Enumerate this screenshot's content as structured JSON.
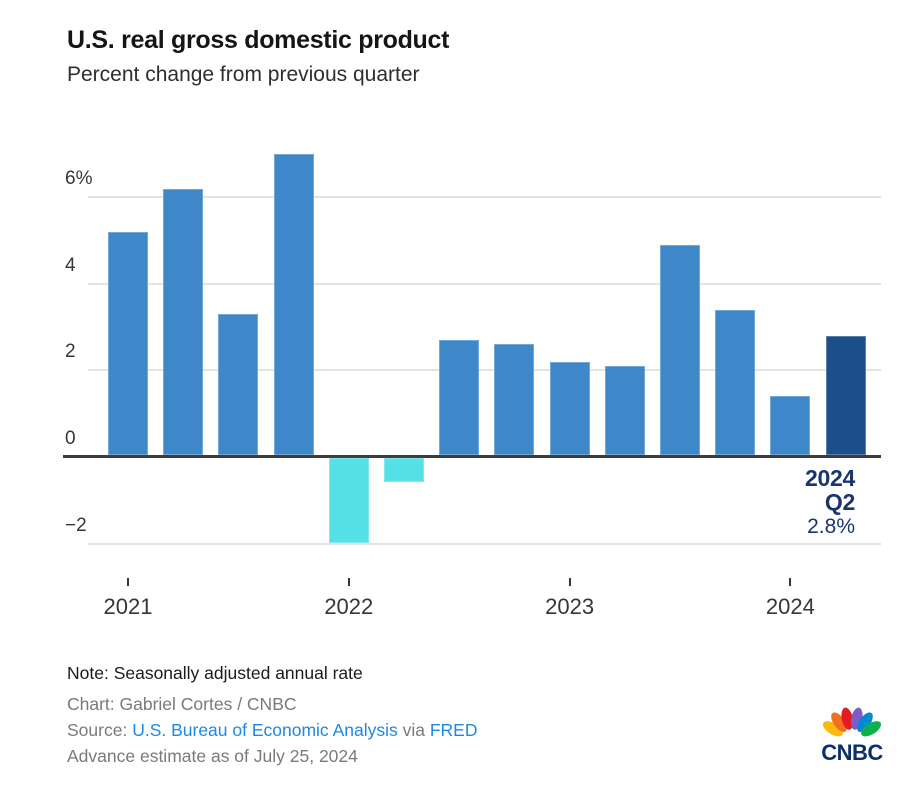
{
  "header": {
    "title": "U.S. real gross domestic product",
    "subtitle": "Percent change from previous quarter"
  },
  "chart_data": {
    "type": "bar",
    "title": "U.S. real gross domestic product",
    "subtitle": "Percent change from previous quarter",
    "unit": "percent change, quarter over quarter",
    "categories": [
      "2021 Q1",
      "2021 Q2",
      "2021 Q3",
      "2021 Q4",
      "2022 Q1",
      "2022 Q2",
      "2022 Q3",
      "2022 Q4",
      "2023 Q1",
      "2023 Q2",
      "2023 Q3",
      "2023 Q4",
      "2024 Q1",
      "2024 Q2"
    ],
    "values": [
      5.2,
      6.2,
      3.3,
      7.0,
      -2.0,
      -0.6,
      2.7,
      2.6,
      2.2,
      2.1,
      4.9,
      3.4,
      1.4,
      2.8
    ],
    "ylim": [
      -2.8,
      7.2
    ],
    "grid": true,
    "legend": false,
    "yticks": [
      {
        "label": "6%",
        "value": 6
      },
      {
        "label": "4",
        "value": 4
      },
      {
        "label": "2",
        "value": 2
      },
      {
        "label": "0",
        "value": 0
      },
      {
        "label": "−2",
        "value": -2
      }
    ],
    "xticks": [
      {
        "label": "2021",
        "index": 0
      },
      {
        "label": "2022",
        "index": 4
      },
      {
        "label": "2023",
        "index": 8
      },
      {
        "label": "2024",
        "index": 12
      }
    ],
    "colors": {
      "positive": "#3E87C8",
      "negative": "#55E0E8",
      "highlight": "#1C4E8A",
      "gridline": "#E3E3E3",
      "zero_line": "#3D3D3D",
      "axis_text": "#363636"
    },
    "highlight_index": 13,
    "annotation": {
      "line1": "2024",
      "line2": "Q2",
      "line3": "2.8%",
      "color": "#1A356E"
    }
  },
  "footer": {
    "note": "Note: Seasonally adjusted annual rate",
    "credit": "Chart: Gabriel Cortes / CNBC",
    "source_prefix": "Source: ",
    "source_link_bea": "U.S. Bureau of Economic Analysis",
    "source_middle": " via ",
    "source_link_fred": "FRED",
    "estimate": "Advance estimate as of July 25, 2024",
    "link_color": "#1E88E5"
  },
  "logo": {
    "brand": "CNBC",
    "peacock_colors": [
      "#FCB711",
      "#F37021",
      "#E31B23",
      "#7D5CC6",
      "#0089D0",
      "#0DB14B"
    ],
    "wordmark_color": "#0B2F6C"
  }
}
